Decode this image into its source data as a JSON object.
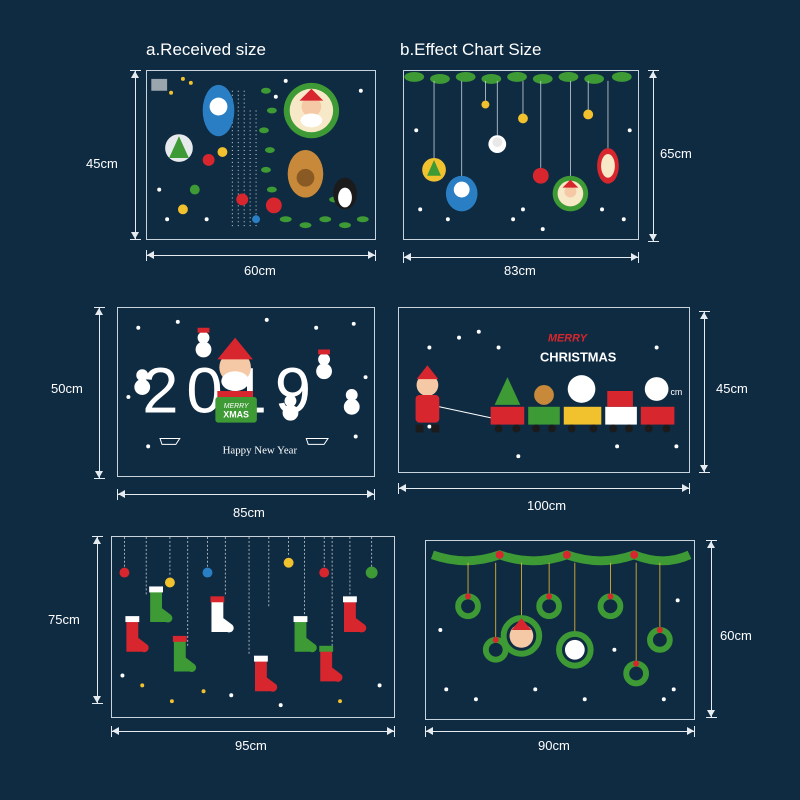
{
  "headings": {
    "received": "a.Received size",
    "effect": "b.Effect Chart Size"
  },
  "panels": [
    {
      "id": "received",
      "width_label": "60cm",
      "height_label": "45cm"
    },
    {
      "id": "effect-hanging",
      "width_label": "83cm",
      "height_label": "65cm"
    },
    {
      "id": "2019",
      "width_label": "85cm",
      "height_label": "50cm"
    },
    {
      "id": "train",
      "width_label": "100cm",
      "height_label": "45cm"
    },
    {
      "id": "stockings",
      "width_label": "95cm",
      "height_label": "75cm"
    },
    {
      "id": "wreaths",
      "width_label": "90cm",
      "height_label": "60cm"
    }
  ],
  "sticker_text": {
    "year": "2019",
    "xmas_badge_top": "MERRY",
    "xmas_badge_bottom": "XMAS",
    "happy_new_year": "Happy New Year",
    "merry": "MERRY",
    "christmas": "CHRISTMAS",
    "train_cm": "cm"
  },
  "colors": {
    "background": "#0f2b42",
    "red": "#d7262d",
    "green": "#3d9a34",
    "gold": "#f2c12e",
    "white": "#ffffff"
  }
}
